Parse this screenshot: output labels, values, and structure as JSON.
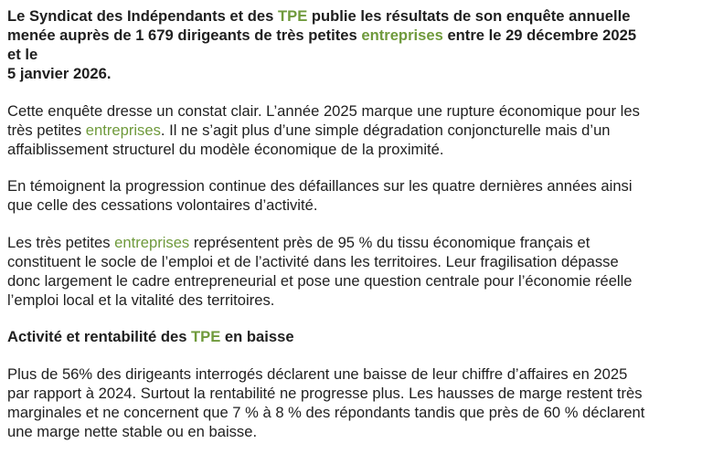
{
  "intro": {
    "l1a": "Le Syndicat des Indépendants et des ",
    "l1link": "TPE",
    "l1b": " publie les résultats de son enquête annuelle",
    "l2a": "menée auprès de 1 679 dirigeants de très petites ",
    "l2link": "entreprises",
    "l2b": " entre le 29 décembre 2025",
    "l3": "et le",
    "l4": "5 janvier 2026."
  },
  "p2": {
    "l1": "Cette enquête dresse un constat clair. L’année 2025 marque une rupture économique pour les",
    "l2a": "très petites ",
    "l2link": "entreprises",
    "l2b": ". Il ne s’agit plus d’une simple dégradation conjoncturelle mais d’un",
    "l3": "affaiblissement structurel du modèle économique de la proximité."
  },
  "p3": {
    "l1": "En témoignent la progression continue des défaillances sur les quatre dernières années ainsi",
    "l2": "que celle des cessations volontaires d’activité."
  },
  "p4": {
    "l1a": "Les très petites ",
    "l1link": "entreprises",
    "l1b": " représentent près de 95 % du tissu économique français et",
    "l2": "constituent le socle de l’emploi et de l’activité dans les territoires. Leur fragilisation dépasse",
    "l3": "donc largement le cadre entrepreneurial et pose une question centrale pour l’économie réelle",
    "l4": "l’emploi local et la vitalité des territoires."
  },
  "heading": {
    "a": "Activité et rentabilité des ",
    "link": "TPE",
    "b": " en baisse"
  },
  "p5": {
    "l1": "Plus de 56% des dirigeants interrogés déclarent une baisse de leur chiffre d’affaires en 2025",
    "l2": "par rapport à 2024. Surtout la rentabilité ne progresse plus. Les hausses de marge restent très",
    "l3": "marginales et ne concernent que 7 % à 8 % des répondants tandis que près de 60 % déclarent",
    "l4": "une marge nette stable ou en baisse."
  },
  "colors": {
    "text": "#1f1f1f",
    "link": "#6f9a3c",
    "background": "#ffffff"
  }
}
